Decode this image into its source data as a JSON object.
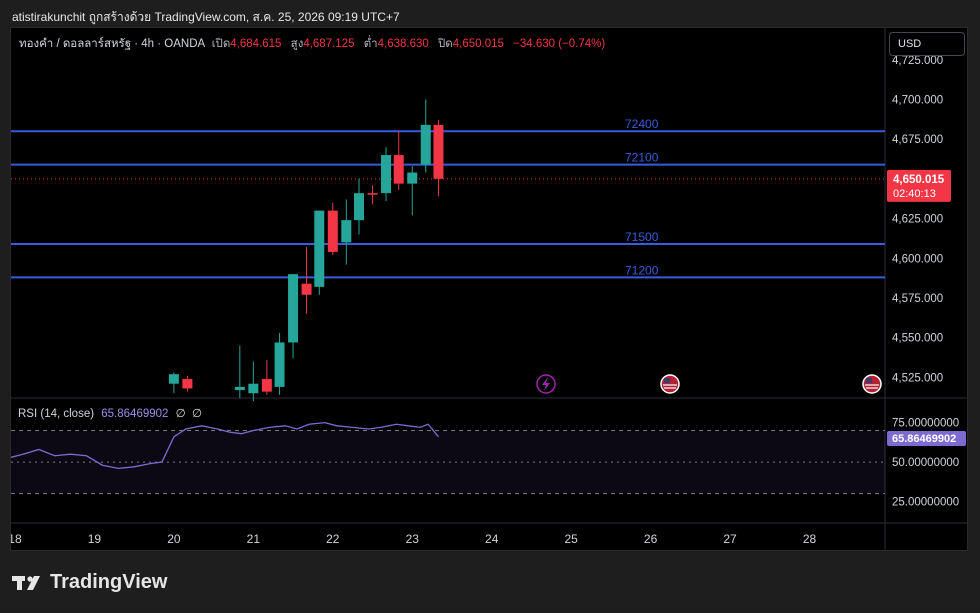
{
  "header": {
    "text": "atistirakunchit ถูกสร้างด้วย TradingView.com, ส.ค. 25, 2026 09:19 UTC+7"
  },
  "legend": {
    "symbol": "ทองคำ / ดอลลาร์สหรัฐ · 4h · OANDA",
    "open_label": "เปิด",
    "open": "4,684.615",
    "high_label": "สูง",
    "high": "4,687.125",
    "low_label": "ต่ำ",
    "low": "4,638.630",
    "close_label": "ปิด",
    "close": "4,650.015",
    "change": "−34.630 (−0.74%)"
  },
  "currency_button": "USD",
  "price_badge": {
    "price": "4,650.015",
    "countdown": "02:40:13"
  },
  "rsi": {
    "label": "RSI (14, close)",
    "value": "65.86469902",
    "extra1": "∅",
    "extra2": "∅"
  },
  "footer": {
    "brand": "TradingView"
  },
  "colors": {
    "up": "#26a69a",
    "down": "#f23645",
    "level_line": "#3a5bdc",
    "rsi": "#7e6bd1"
  },
  "chart_data": [
    {
      "type": "candlestick",
      "title": "ทองคำ / ดอลลาร์สหรัฐ · 4h · OANDA",
      "x_ticks": [
        "18",
        "19",
        "20",
        "21",
        "22",
        "23",
        "24",
        "25",
        "26",
        "27",
        "28"
      ],
      "x_tick_days": [
        18,
        19,
        20,
        21,
        22,
        23,
        24,
        25,
        26,
        27,
        28
      ],
      "y_ticks": [
        "4,725.000",
        "4,700.000",
        "4,675.000",
        "4,650.000",
        "4,625.000",
        "4,600.000",
        "4,575.000",
        "4,550.000",
        "4,525.000"
      ],
      "y_tick_values": [
        4725,
        4700,
        4675,
        4650,
        4625,
        4600,
        4575,
        4550,
        4525
      ],
      "ylim": [
        4512,
        4745
      ],
      "xlim": [
        17.95,
        28.95
      ],
      "candles": [
        {
          "t": 20.0,
          "o": 4521,
          "h": 4528,
          "l": 4515,
          "c": 4527
        },
        {
          "t": 20.17,
          "o": 4524,
          "h": 4526,
          "l": 4516,
          "c": 4518
        },
        {
          "t": 20.83,
          "o": 4517,
          "h": 4545,
          "l": 4512,
          "c": 4519
        },
        {
          "t": 21.0,
          "o": 4515,
          "h": 4535,
          "l": 4510,
          "c": 4521
        },
        {
          "t": 21.17,
          "o": 4524,
          "h": 4536,
          "l": 4514,
          "c": 4516
        },
        {
          "t": 21.33,
          "o": 4519,
          "h": 4553,
          "l": 4514,
          "c": 4547
        },
        {
          "t": 21.5,
          "o": 4547,
          "h": 4590,
          "l": 4537,
          "c": 4590
        },
        {
          "t": 21.67,
          "o": 4584,
          "h": 4607,
          "l": 4565,
          "c": 4577
        },
        {
          "t": 21.83,
          "o": 4582,
          "h": 4630,
          "l": 4577,
          "c": 4630
        },
        {
          "t": 22.0,
          "o": 4630,
          "h": 4635,
          "l": 4602,
          "c": 4604
        },
        {
          "t": 22.17,
          "o": 4610,
          "h": 4637,
          "l": 4596,
          "c": 4624
        },
        {
          "t": 22.33,
          "o": 4624,
          "h": 4650,
          "l": 4615,
          "c": 4641
        },
        {
          "t": 22.5,
          "o": 4641,
          "h": 4646,
          "l": 4634,
          "c": 4640
        },
        {
          "t": 22.67,
          "o": 4641,
          "h": 4670,
          "l": 4636,
          "c": 4665
        },
        {
          "t": 22.83,
          "o": 4665,
          "h": 4680,
          "l": 4643,
          "c": 4647
        },
        {
          "t": 23.0,
          "o": 4647,
          "h": 4658,
          "l": 4627,
          "c": 4654
        },
        {
          "t": 23.17,
          "o": 4659,
          "h": 4700,
          "l": 4654,
          "c": 4684
        },
        {
          "t": 23.33,
          "o": 4684,
          "h": 4687,
          "l": 4639,
          "c": 4650
        }
      ],
      "levels": [
        {
          "label": "72400",
          "price": 4680
        },
        {
          "label": "72100",
          "price": 4659
        },
        {
          "label": "71500",
          "price": 4609
        },
        {
          "label": "71200",
          "price": 4588
        }
      ],
      "last_price": 4650.015
    },
    {
      "type": "line",
      "title": "RSI (14, close)",
      "y_ticks": [
        "75.00000000",
        "50.00000000",
        "25.00000000"
      ],
      "y_tick_values": [
        75,
        50,
        25
      ],
      "ylim": [
        12,
        90
      ],
      "band": [
        30,
        70
      ],
      "x": [
        17.95,
        18.1,
        18.3,
        18.5,
        18.7,
        18.9,
        19.1,
        19.3,
        19.5,
        19.7,
        19.85,
        20.0,
        20.15,
        20.35,
        20.55,
        20.7,
        20.85,
        21.0,
        21.2,
        21.4,
        21.55,
        21.7,
        21.9,
        22.05,
        22.25,
        22.45,
        22.6,
        22.8,
        22.95,
        23.1,
        23.2,
        23.33
      ],
      "y": [
        53,
        55,
        58,
        54,
        55,
        54,
        48,
        46,
        47,
        49,
        50,
        66,
        71,
        73,
        71,
        69,
        68,
        70,
        72,
        73,
        71,
        74,
        75,
        73,
        72,
        71,
        72,
        74,
        73,
        72,
        74,
        66
      ],
      "last_value": 65.86469902
    }
  ]
}
